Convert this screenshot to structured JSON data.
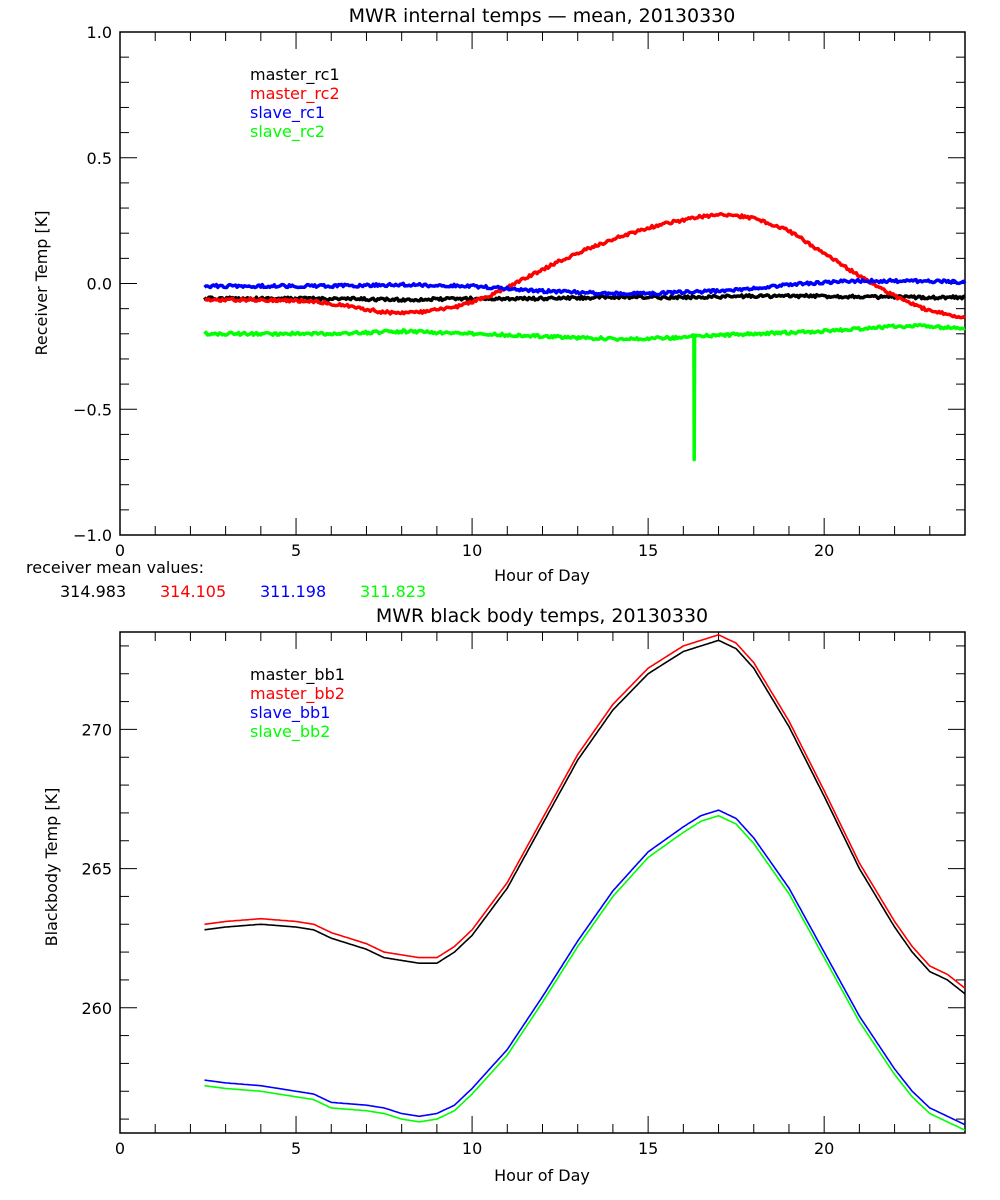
{
  "chart_data": [
    {
      "type": "line",
      "title": "MWR internal temps — mean, 20130330",
      "xlabel": "Hour of Day",
      "ylabel": "Receiver Temp [K]",
      "xlim": [
        0,
        24
      ],
      "ylim": [
        -1.0,
        1.0
      ],
      "xticks": [
        "0",
        "5",
        "10",
        "15",
        "20"
      ],
      "yticks": [
        "−1.0",
        "−0.5",
        "0.0",
        "0.5",
        "1.0"
      ],
      "ytick_values": [
        -1.0,
        -0.5,
        0.0,
        0.5,
        1.0
      ],
      "xtick_values": [
        0,
        5,
        10,
        15,
        20
      ],
      "legend_position": "top-left",
      "series": [
        {
          "name": "master_rc1",
          "color": "#000000",
          "x": [
            2.4,
            4,
            6,
            8,
            10,
            12,
            14,
            16,
            18,
            20,
            22,
            24
          ],
          "y": [
            -0.06,
            -0.06,
            -0.06,
            -0.065,
            -0.06,
            -0.06,
            -0.055,
            -0.055,
            -0.05,
            -0.05,
            -0.055,
            -0.055
          ]
        },
        {
          "name": "master_rc2",
          "color": "#ff0000",
          "x": [
            2.4,
            4,
            5.5,
            6.5,
            7.5,
            8.5,
            9.5,
            10.5,
            11.5,
            12.5,
            13.5,
            14.5,
            15.5,
            16.5,
            17.2,
            18,
            19,
            20,
            21,
            22,
            23,
            24
          ],
          "y": [
            -0.065,
            -0.065,
            -0.07,
            -0.09,
            -0.115,
            -0.115,
            -0.095,
            -0.05,
            0.02,
            0.09,
            0.15,
            0.2,
            0.24,
            0.265,
            0.275,
            0.26,
            0.21,
            0.12,
            0.03,
            -0.05,
            -0.11,
            -0.135
          ]
        },
        {
          "name": "slave_rc1",
          "color": "#0000ff",
          "x": [
            2.4,
            4,
            6,
            8,
            10,
            11,
            12,
            13,
            14,
            15,
            16,
            17,
            18,
            19,
            20,
            21,
            22,
            23,
            24
          ],
          "y": [
            -0.01,
            -0.01,
            -0.01,
            -0.005,
            -0.01,
            -0.02,
            -0.03,
            -0.035,
            -0.04,
            -0.04,
            -0.035,
            -0.03,
            -0.02,
            -0.005,
            0.005,
            0.01,
            0.01,
            0.01,
            0.005
          ]
        },
        {
          "name": "slave_rc2",
          "color": "#00ff00",
          "x": [
            2.4,
            4,
            6,
            8,
            10,
            12,
            14,
            16,
            16.3,
            16.31,
            16.32,
            18,
            20,
            22,
            23,
            24
          ],
          "y": [
            -0.2,
            -0.2,
            -0.2,
            -0.19,
            -0.2,
            -0.21,
            -0.22,
            -0.215,
            -0.21,
            -0.7,
            -0.21,
            -0.2,
            -0.19,
            -0.17,
            -0.17,
            -0.18
          ]
        }
      ],
      "annotation_label": "receiver mean values:",
      "annotation_values": [
        {
          "value": "314.983",
          "color": "#000000"
        },
        {
          "value": "314.105",
          "color": "#ff0000"
        },
        {
          "value": "311.198",
          "color": "#0000ff"
        },
        {
          "value": "311.823",
          "color": "#00ff00"
        }
      ]
    },
    {
      "type": "line",
      "title": "MWR black body temps, 20130330",
      "xlabel": "Hour of Day",
      "ylabel": "Blackbody Temp [K]",
      "xlim": [
        0,
        24
      ],
      "ylim": [
        255.5,
        273.5
      ],
      "xticks": [
        "0",
        "5",
        "10",
        "15",
        "20"
      ],
      "xtick_values": [
        0,
        5,
        10,
        15,
        20
      ],
      "yticks": [
        "260",
        "265",
        "270"
      ],
      "ytick_values": [
        260,
        265,
        270
      ],
      "legend_position": "top-left",
      "series": [
        {
          "name": "master_bb1",
          "color": "#000000",
          "x": [
            2.4,
            3,
            4,
            5,
            5.5,
            6,
            7,
            7.5,
            8,
            8.5,
            9,
            9.5,
            10,
            11,
            12,
            13,
            14,
            15,
            16,
            16.5,
            17,
            17.5,
            18,
            19,
            20,
            21,
            22,
            22.5,
            23,
            23.5,
            24
          ],
          "y": [
            262.8,
            262.9,
            263.0,
            262.9,
            262.8,
            262.5,
            262.1,
            261.8,
            261.7,
            261.6,
            261.6,
            262.0,
            262.6,
            264.3,
            266.6,
            268.9,
            270.7,
            272.0,
            272.8,
            273.0,
            273.2,
            272.9,
            272.2,
            270.1,
            267.6,
            265.0,
            262.9,
            262.0,
            261.3,
            261.0,
            260.5
          ]
        },
        {
          "name": "master_bb2",
          "color": "#ff0000",
          "x": [
            2.4,
            3,
            4,
            5,
            5.5,
            6,
            7,
            7.5,
            8,
            8.5,
            9,
            9.5,
            10,
            11,
            12,
            13,
            14,
            15,
            16,
            16.5,
            17,
            17.5,
            18,
            19,
            20,
            21,
            22,
            22.5,
            23,
            23.5,
            24
          ],
          "y": [
            263.0,
            263.1,
            263.2,
            263.1,
            263.0,
            262.7,
            262.3,
            262.0,
            261.9,
            261.8,
            261.8,
            262.2,
            262.8,
            264.5,
            266.8,
            269.1,
            270.9,
            272.2,
            273.0,
            273.2,
            273.4,
            273.1,
            272.4,
            270.3,
            267.8,
            265.2,
            263.1,
            262.2,
            261.5,
            261.2,
            260.7
          ]
        },
        {
          "name": "slave_bb1",
          "color": "#0000ff",
          "x": [
            2.4,
            3,
            4,
            5,
            5.5,
            6,
            7,
            7.5,
            8,
            8.5,
            9,
            9.5,
            10,
            11,
            12,
            13,
            14,
            15,
            16,
            16.5,
            17,
            17.5,
            18,
            19,
            20,
            21,
            22,
            22.5,
            23,
            23.5,
            24
          ],
          "y": [
            257.4,
            257.3,
            257.2,
            257.0,
            256.9,
            256.6,
            256.5,
            256.4,
            256.2,
            256.1,
            256.2,
            256.5,
            257.1,
            258.5,
            260.4,
            262.4,
            264.2,
            265.6,
            266.5,
            266.9,
            267.1,
            266.8,
            266.1,
            264.3,
            262.0,
            259.7,
            257.8,
            257.0,
            256.4,
            256.1,
            255.8
          ]
        },
        {
          "name": "slave_bb2",
          "color": "#00ff00",
          "x": [
            2.4,
            3,
            4,
            5,
            5.5,
            6,
            7,
            7.5,
            8,
            8.5,
            9,
            9.5,
            10,
            11,
            12,
            13,
            14,
            15,
            16,
            16.5,
            17,
            17.5,
            18,
            19,
            20,
            21,
            22,
            22.5,
            23,
            23.5,
            24
          ],
          "y": [
            257.2,
            257.1,
            257.0,
            256.8,
            256.7,
            256.4,
            256.3,
            256.2,
            256.0,
            255.9,
            256.0,
            256.3,
            256.9,
            258.3,
            260.2,
            262.2,
            264.0,
            265.4,
            266.3,
            266.7,
            266.9,
            266.6,
            265.9,
            264.1,
            261.8,
            259.5,
            257.6,
            256.8,
            256.2,
            255.9,
            255.6
          ]
        }
      ]
    }
  ]
}
